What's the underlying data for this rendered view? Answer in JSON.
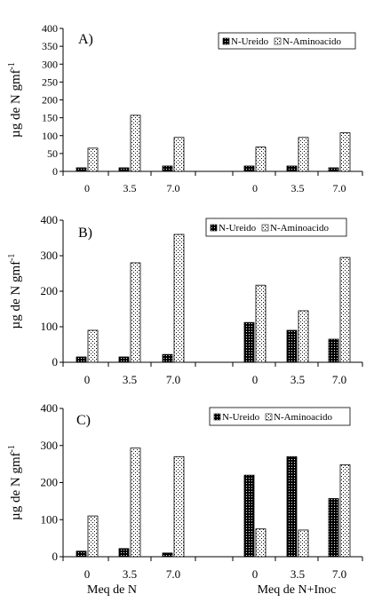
{
  "chart_data": [
    {
      "type": "bar",
      "panel_label": "A)",
      "ylabel": "µg de N gmf-1",
      "ylim": [
        0,
        400
      ],
      "yticks": [
        "0",
        "50",
        "100",
        "150",
        "200",
        "250",
        "300",
        "350",
        "400"
      ],
      "groups": [
        "Meq  de N",
        "Meq de N+Inoc"
      ],
      "categories": [
        "0",
        "3.5",
        "7.0",
        "0",
        "3.5",
        "7.0"
      ],
      "legend_position": "top-right",
      "series": [
        {
          "name": "N-Ureido",
          "pattern": "dense-dots",
          "values": [
            10,
            10,
            15,
            15,
            15,
            10
          ]
        },
        {
          "name": "N-Aminoacido",
          "pattern": "sparse-dots",
          "values": [
            65,
            157,
            95,
            68,
            95,
            108
          ]
        }
      ]
    },
    {
      "type": "bar",
      "panel_label": "B)",
      "ylabel": "µg de N gmf-1",
      "ylim": [
        0,
        400
      ],
      "yticks": [
        "0",
        "100",
        "200",
        "300",
        "400"
      ],
      "groups": [
        "Meq  de N",
        "Meq de N+Inoc"
      ],
      "categories": [
        "0",
        "3.5",
        "7.0",
        "0",
        "3.5",
        "7.0"
      ],
      "legend_position": "top-right",
      "series": [
        {
          "name": "N-Ureido",
          "pattern": "dense-dots",
          "values": [
            15,
            15,
            22,
            112,
            90,
            65
          ]
        },
        {
          "name": "N-Aminoacido",
          "pattern": "sparse-dots",
          "values": [
            90,
            280,
            360,
            217,
            145,
            295
          ]
        }
      ]
    },
    {
      "type": "bar",
      "panel_label": "C)",
      "ylabel": "µg de N gmf-1",
      "ylim": [
        0,
        400
      ],
      "yticks": [
        "0",
        "100",
        "200",
        "300",
        "400"
      ],
      "groups": [
        "Meq  de N",
        "Meq de N+Inoc"
      ],
      "categories": [
        "0",
        "3.5",
        "7.0",
        "0",
        "3.5",
        "7.0"
      ],
      "legend_position": "top-right",
      "series": [
        {
          "name": "N-Ureido",
          "pattern": "dense-dots",
          "values": [
            15,
            22,
            10,
            220,
            270,
            157
          ]
        },
        {
          "name": "N-Aminoacido",
          "pattern": "sparse-dots",
          "values": [
            110,
            293,
            270,
            75,
            72,
            248
          ]
        }
      ]
    }
  ]
}
